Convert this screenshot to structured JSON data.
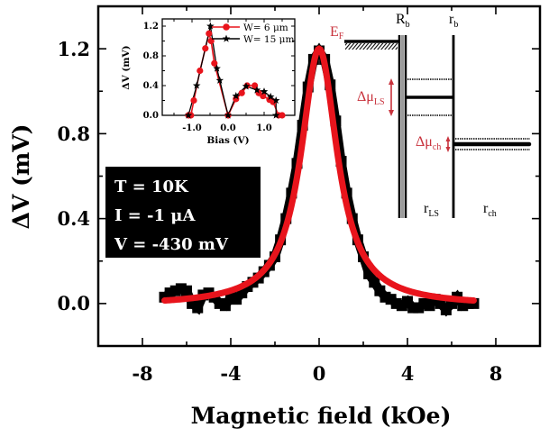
{
  "chart_data": [
    {
      "type": "scatter",
      "name": "main",
      "title": "",
      "xlabel": "Magnetic field (kOe)",
      "ylabel": "ΔV (mV)",
      "xlim": [
        -10,
        10
      ],
      "ylim": [
        -0.2,
        1.4
      ],
      "xticks": [
        -8,
        -4,
        0,
        4,
        8
      ],
      "xtick_labels": [
        "-8",
        "-4",
        "0",
        "4",
        "8"
      ],
      "yticks": [
        0.0,
        0.4,
        0.8,
        1.2
      ],
      "ytick_labels": [
        "0.0",
        "0.4",
        "0.8",
        "1.2"
      ],
      "grid": false,
      "series": [
        {
          "name": "data",
          "style": "black squares",
          "color": "#000000",
          "x": [
            -7.0,
            -6.75,
            -6.5,
            -6.25,
            -6.0,
            -5.75,
            -5.5,
            -5.25,
            -5.0,
            -4.75,
            -4.5,
            -4.25,
            -4.0,
            -3.75,
            -3.5,
            -3.25,
            -3.0,
            -2.75,
            -2.5,
            -2.25,
            -2.0,
            -1.75,
            -1.5,
            -1.25,
            -1.0,
            -0.75,
            -0.5,
            -0.25,
            0.0,
            0.25,
            0.5,
            0.75,
            1.0,
            1.25,
            1.5,
            1.75,
            2.0,
            2.25,
            2.5,
            2.75,
            3.0,
            3.25,
            3.5,
            3.75,
            4.0,
            4.25,
            4.5,
            4.75,
            5.0,
            5.25,
            5.5,
            5.75,
            6.0,
            6.25,
            6.5,
            6.75,
            7.0
          ],
          "y": [
            0.03,
            0.05,
            0.06,
            0.07,
            0.06,
            0.0,
            -0.02,
            0.04,
            0.05,
            0.03,
            0.0,
            -0.01,
            0.03,
            0.02,
            0.05,
            0.08,
            0.1,
            0.12,
            0.15,
            0.18,
            0.22,
            0.3,
            0.4,
            0.52,
            0.66,
            0.84,
            1.02,
            1.15,
            1.19,
            1.15,
            1.03,
            0.86,
            0.67,
            0.52,
            0.4,
            0.3,
            0.22,
            0.14,
            0.1,
            0.06,
            0.03,
            0.02,
            0.0,
            -0.01,
            0.01,
            -0.02,
            -0.02,
            0.0,
            -0.01,
            0.02,
            0.0,
            -0.03,
            0.0,
            0.03,
            -0.01,
            0.0,
            0.0
          ]
        },
        {
          "name": "fit",
          "style": "red line",
          "color": "#e8141c",
          "model": "lorentzian",
          "amplitude": 1.21,
          "center": 0.0,
          "hwhm": 1.0,
          "offset": -0.01,
          "x_range": [
            -7.0,
            7.0
          ]
        }
      ],
      "annotations": {
        "conditions": [
          "T = 10K",
          "I = -1 μA",
          "V = -430 mV"
        ]
      }
    },
    {
      "type": "line",
      "name": "inset",
      "xlabel": "Bias (V)",
      "ylabel": "ΔV (mV)",
      "xlim": [
        -1.8,
        1.85
      ],
      "ylim": [
        0.0,
        1.3
      ],
      "xticks": [
        -1.0,
        0.0,
        1.0
      ],
      "xtick_labels": [
        "-1.0",
        "0.0",
        "1.0"
      ],
      "yticks": [
        0.0,
        0.4,
        0.8,
        1.2
      ],
      "ytick_labels": [
        "0.0",
        "0.4",
        "0.8",
        "1.2"
      ],
      "legend_position": "top-right",
      "series": [
        {
          "name": "W= 6 μm",
          "marker": "circle",
          "color": "#e8141c",
          "x": [
            -1.1,
            -1.03,
            -0.95,
            -0.78,
            -0.63,
            -0.53,
            -0.47,
            -0.38,
            0.0,
            0.22,
            0.38,
            0.53,
            0.74,
            0.85,
            0.97,
            1.15,
            1.25,
            1.4,
            1.5
          ],
          "y": [
            0.0,
            0.0,
            0.2,
            0.6,
            0.9,
            1.1,
            1.0,
            0.7,
            0.0,
            0.22,
            0.3,
            0.4,
            0.4,
            0.3,
            0.26,
            0.21,
            0.18,
            0.0,
            0.0
          ]
        },
        {
          "name": "W= 15 μm",
          "marker": "star",
          "color": "#000000",
          "x": [
            -1.1,
            -0.87,
            -0.49,
            -0.31,
            -0.23,
            0.0,
            0.22,
            0.5,
            0.8,
            1.0,
            1.18,
            1.33,
            1.33
          ],
          "y": [
            0.0,
            0.4,
            1.2,
            0.63,
            0.47,
            0.0,
            0.26,
            0.39,
            0.34,
            0.32,
            0.25,
            0.2,
            0.0
          ]
        }
      ]
    }
  ],
  "diagram": {
    "fermi_label": "E",
    "fermi_sub": "F",
    "Rb_label": "R",
    "Rb_sub": "b",
    "rb_label": "r",
    "rb_sub": "b",
    "dmu_ls_label": "Δμ",
    "dmu_ls_sub": "LS",
    "dmu_ch_label": "Δμ",
    "dmu_ch_sub": "ch",
    "rls_label": "r",
    "rls_sub": "LS",
    "rch_label": "r",
    "rch_sub": "ch",
    "accent_color": "#c8323c"
  }
}
